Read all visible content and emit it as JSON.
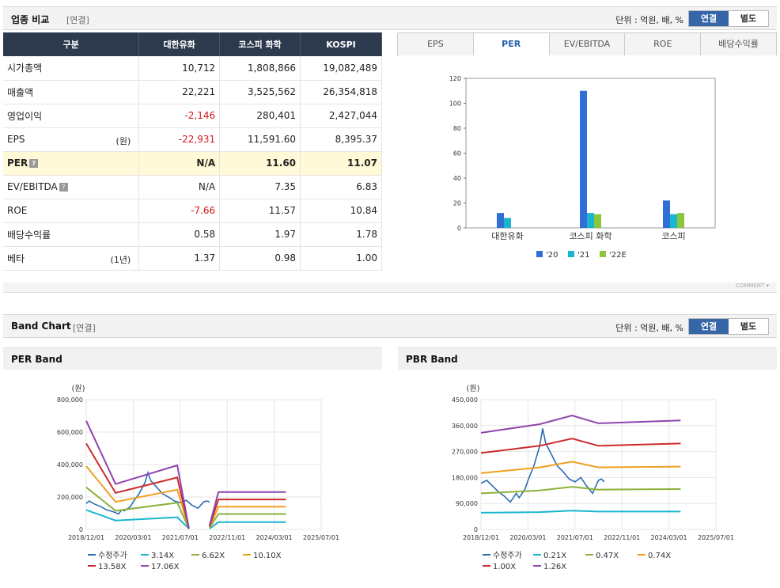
{
  "comparison": {
    "title": "업종 비교",
    "sub": "[연결]",
    "unit": "단위 : 억원, 배, %",
    "toggle": {
      "on": "연결",
      "off": "별도"
    },
    "headers": [
      "구분",
      "대한유화",
      "코스피 화학",
      "KOSPI"
    ],
    "rows": [
      {
        "label": "시가총액",
        "unit": "",
        "help": false,
        "vals": [
          "10,712",
          "1,808,866",
          "19,082,489"
        ],
        "neg": [
          false,
          false,
          false
        ],
        "hl": false
      },
      {
        "label": "매출액",
        "unit": "",
        "help": false,
        "vals": [
          "22,221",
          "3,525,562",
          "26,354,818"
        ],
        "neg": [
          false,
          false,
          false
        ],
        "hl": false
      },
      {
        "label": "영업이익",
        "unit": "",
        "help": false,
        "vals": [
          "-2,146",
          "280,401",
          "2,427,044"
        ],
        "neg": [
          true,
          false,
          false
        ],
        "hl": false
      },
      {
        "label": "EPS",
        "unit": "(원)",
        "help": false,
        "vals": [
          "-22,931",
          "11,591.60",
          "8,395.37"
        ],
        "neg": [
          true,
          false,
          false
        ],
        "hl": false
      },
      {
        "label": "PER",
        "unit": "",
        "help": true,
        "vals": [
          "N/A",
          "11.60",
          "11.07"
        ],
        "neg": [
          false,
          false,
          false
        ],
        "hl": true
      },
      {
        "label": "EV/EBITDA",
        "unit": "",
        "help": true,
        "vals": [
          "N/A",
          "7.35",
          "6.83"
        ],
        "neg": [
          false,
          false,
          false
        ],
        "hl": false
      },
      {
        "label": "ROE",
        "unit": "",
        "help": false,
        "vals": [
          "-7.66",
          "11.57",
          "10.84"
        ],
        "neg": [
          true,
          false,
          false
        ],
        "hl": false
      },
      {
        "label": "배당수익률",
        "unit": "",
        "help": false,
        "vals": [
          "0.58",
          "1.97",
          "1.78"
        ],
        "neg": [
          false,
          false,
          false
        ],
        "hl": false
      },
      {
        "label": "베타",
        "unit": "(1년)",
        "help": false,
        "vals": [
          "1.37",
          "0.98",
          "1.00"
        ],
        "neg": [
          false,
          false,
          false
        ],
        "hl": false
      }
    ],
    "tabs": [
      "EPS",
      "PER",
      "EV/EBITDA",
      "ROE",
      "배당수익률"
    ],
    "active_tab": "PER",
    "comment": "COMMENT"
  },
  "band": {
    "title": "Band Chart",
    "sub": "[연결]",
    "unit": "단위 : 억원, 배, %",
    "toggle": {
      "on": "연결",
      "off": "별도"
    },
    "per_title": "PER Band",
    "pbr_title": "PBR Band"
  },
  "colors": {
    "s20": "#2f6fd6",
    "s21": "#18b6cf",
    "s22": "#8cc63f",
    "price": "#2b6cb5",
    "b1": "#18b6cf",
    "b2": "#8cb13a",
    "b3": "#f0a020",
    "b4": "#cc2b2b",
    "b5": "#8e44ad"
  },
  "chart_data": [
    {
      "type": "bar",
      "title": "PER",
      "categories": [
        "대한유화",
        "코스피 화학",
        "코스피"
      ],
      "ylim": [
        0,
        120
      ],
      "yticks": [
        0,
        20,
        40,
        60,
        80,
        100,
        120
      ],
      "series": [
        {
          "name": "'20",
          "values": [
            12,
            110,
            22
          ]
        },
        {
          "name": "'21",
          "values": [
            8,
            12,
            11
          ]
        },
        {
          "name": "'22E",
          "values": [
            0,
            11,
            12
          ]
        }
      ]
    },
    {
      "type": "line",
      "title": "PER Band",
      "ylabel": "(원)",
      "ylim": [
        0,
        800000
      ],
      "yticks": [
        "0",
        "200,000",
        "400,000",
        "600,000",
        "800,000"
      ],
      "xticks": [
        "2018/12/01",
        "2020/03/01",
        "2021/07/01",
        "2022/11/01",
        "2024/03/01",
        "2025/07/01"
      ],
      "xlim": [
        0,
        80
      ],
      "series": [
        {
          "name": "수정주가",
          "points": [
            [
              0,
              160000
            ],
            [
              1,
              175000
            ],
            [
              3,
              155000
            ],
            [
              5,
              140000
            ],
            [
              7,
              120000
            ],
            [
              9,
              110000
            ],
            [
              11,
              95000
            ],
            [
              12,
              120000
            ],
            [
              13,
              115000
            ],
            [
              15,
              140000
            ],
            [
              16,
              170000
            ],
            [
              18,
              220000
            ],
            [
              20,
              290000
            ],
            [
              21,
              350000
            ],
            [
              22,
              300000
            ],
            [
              24,
              260000
            ],
            [
              26,
              220000
            ],
            [
              28,
              200000
            ],
            [
              30,
              175000
            ],
            [
              32,
              165000
            ],
            [
              34,
              180000
            ],
            [
              36,
              150000
            ],
            [
              38,
              130000
            ],
            [
              40,
              170000
            ],
            [
              41,
              175000
            ],
            [
              42,
              170000
            ]
          ]
        },
        {
          "name": "3.14X",
          "points": [
            [
              0,
              120000
            ],
            [
              10,
              55000
            ],
            [
              31,
              75000
            ],
            [
              35,
              5000
            ],
            [
              null,
              null
            ],
            [
              42,
              5000
            ],
            [
              45,
              45000
            ],
            [
              68,
              45000
            ]
          ]
        },
        {
          "name": "6.62X",
          "points": [
            [
              0,
              260000
            ],
            [
              10,
              115000
            ],
            [
              31,
              165000
            ],
            [
              35,
              5000
            ],
            [
              null,
              null
            ],
            [
              42,
              10000
            ],
            [
              45,
              95000
            ],
            [
              68,
              95000
            ]
          ]
        },
        {
          "name": "10.10X",
          "points": [
            [
              0,
              390000
            ],
            [
              10,
              170000
            ],
            [
              31,
              245000
            ],
            [
              35,
              5000
            ],
            [
              null,
              null
            ],
            [
              42,
              15000
            ],
            [
              45,
              140000
            ],
            [
              68,
              140000
            ]
          ]
        },
        {
          "name": "13.58X",
          "points": [
            [
              0,
              530000
            ],
            [
              10,
              225000
            ],
            [
              31,
              320000
            ],
            [
              35,
              5000
            ],
            [
              null,
              null
            ],
            [
              42,
              20000
            ],
            [
              45,
              185000
            ],
            [
              68,
              185000
            ]
          ]
        },
        {
          "name": "17.06X",
          "points": [
            [
              0,
              670000
            ],
            [
              10,
              280000
            ],
            [
              31,
              395000
            ],
            [
              35,
              5000
            ],
            [
              null,
              null
            ],
            [
              42,
              25000
            ],
            [
              45,
              230000
            ],
            [
              68,
              230000
            ]
          ]
        }
      ]
    },
    {
      "type": "line",
      "title": "PBR Band",
      "ylabel": "(원)",
      "ylim": [
        0,
        450000
      ],
      "yticks": [
        "0",
        "90,000",
        "180,000",
        "270,000",
        "360,000",
        "450,000"
      ],
      "xticks": [
        "2018/12/01",
        "2020/03/01",
        "2021/07/01",
        "2022/11/01",
        "2024/03/01",
        "2025/07/01"
      ],
      "xlim": [
        0,
        80
      ],
      "series": [
        {
          "name": "수정주가",
          "points": [
            [
              0,
              160000
            ],
            [
              2,
              170000
            ],
            [
              4,
              150000
            ],
            [
              6,
              130000
            ],
            [
              8,
              115000
            ],
            [
              10,
              95000
            ],
            [
              12,
              125000
            ],
            [
              13,
              110000
            ],
            [
              15,
              140000
            ],
            [
              16,
              170000
            ],
            [
              18,
              220000
            ],
            [
              20,
              290000
            ],
            [
              21,
              350000
            ],
            [
              22,
              300000
            ],
            [
              24,
              260000
            ],
            [
              26,
              220000
            ],
            [
              28,
              200000
            ],
            [
              30,
              175000
            ],
            [
              32,
              165000
            ],
            [
              34,
              180000
            ],
            [
              36,
              150000
            ],
            [
              38,
              125000
            ],
            [
              40,
              170000
            ],
            [
              41,
              175000
            ],
            [
              42,
              165000
            ]
          ]
        },
        {
          "name": "0.21X",
          "points": [
            [
              0,
              58000
            ],
            [
              20,
              60000
            ],
            [
              31,
              65000
            ],
            [
              40,
              62000
            ],
            [
              68,
              62000
            ]
          ]
        },
        {
          "name": "0.47X",
          "points": [
            [
              0,
              125000
            ],
            [
              20,
              135000
            ],
            [
              31,
              148000
            ],
            [
              40,
              138000
            ],
            [
              68,
              140000
            ]
          ]
        },
        {
          "name": "0.74X",
          "points": [
            [
              0,
              195000
            ],
            [
              20,
              215000
            ],
            [
              31,
              235000
            ],
            [
              40,
              215000
            ],
            [
              68,
              218000
            ]
          ]
        },
        {
          "name": "1.00X",
          "points": [
            [
              0,
              265000
            ],
            [
              20,
              290000
            ],
            [
              31,
              315000
            ],
            [
              40,
              290000
            ],
            [
              68,
              298000
            ]
          ]
        },
        {
          "name": "1.26X",
          "points": [
            [
              0,
              335000
            ],
            [
              20,
              365000
            ],
            [
              31,
              395000
            ],
            [
              40,
              368000
            ],
            [
              68,
              378000
            ]
          ]
        }
      ]
    }
  ]
}
